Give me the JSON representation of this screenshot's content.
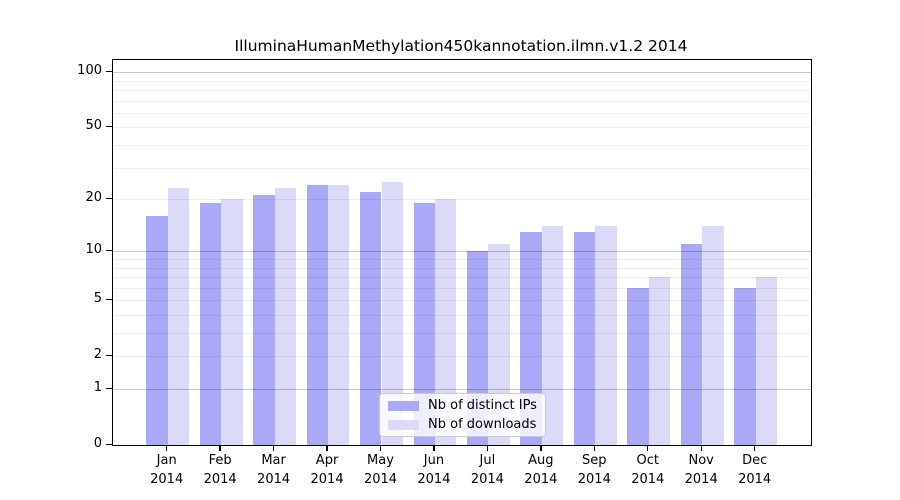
{
  "chart_data": {
    "type": "bar",
    "title": "IlluminaHumanMethylation450kannotation.ilmn.v1.2 2014",
    "categories": [
      {
        "month": "Jan",
        "year": "2014"
      },
      {
        "month": "Feb",
        "year": "2014"
      },
      {
        "month": "Mar",
        "year": "2014"
      },
      {
        "month": "Apr",
        "year": "2014"
      },
      {
        "month": "May",
        "year": "2014"
      },
      {
        "month": "Jun",
        "year": "2014"
      },
      {
        "month": "Jul",
        "year": "2014"
      },
      {
        "month": "Aug",
        "year": "2014"
      },
      {
        "month": "Sep",
        "year": "2014"
      },
      {
        "month": "Oct",
        "year": "2014"
      },
      {
        "month": "Nov",
        "year": "2014"
      },
      {
        "month": "Dec",
        "year": "2014"
      }
    ],
    "series": [
      {
        "name": "Nb of distinct IPs",
        "color": "#a9a9f7",
        "values": [
          16,
          19,
          21,
          24,
          22,
          19,
          10,
          13,
          13,
          6,
          11,
          6
        ]
      },
      {
        "name": "Nb of downloads",
        "color": "#dbdbf9",
        "values": [
          23,
          20,
          23,
          24,
          25,
          20,
          11,
          14,
          14,
          7,
          14,
          7
        ]
      }
    ],
    "yscale": "log1p",
    "ylim": [
      0,
      116
    ],
    "yticks": [
      0,
      1,
      2,
      5,
      10,
      20,
      50,
      100
    ],
    "minor_gridlines": [
      2,
      3,
      4,
      5,
      6,
      7,
      8,
      9,
      20,
      30,
      40,
      50,
      60,
      70,
      80,
      90
    ],
    "major_gridlines": [
      1,
      10,
      100
    ],
    "legend_position": "lower center",
    "grid": "on"
  }
}
